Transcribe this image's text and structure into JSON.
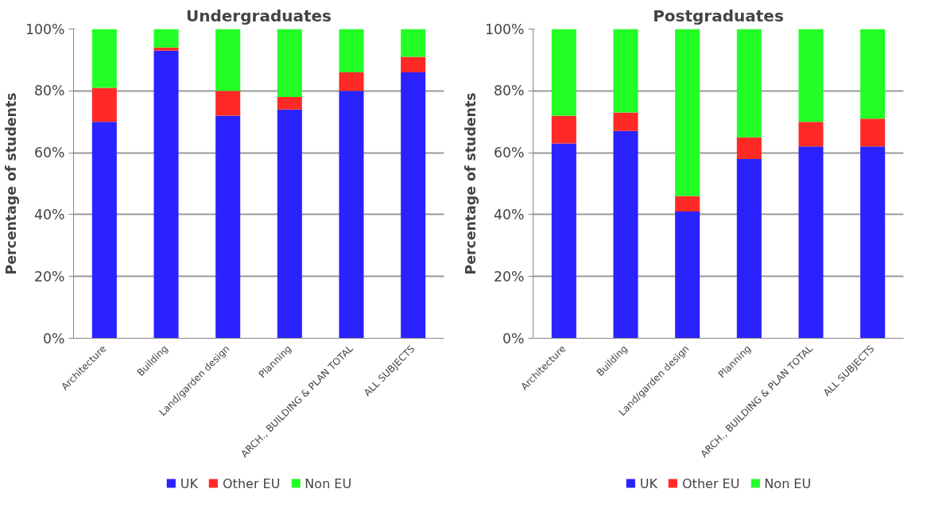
{
  "chart_data": [
    {
      "type": "bar",
      "title": "Undergraduates",
      "ylabel": "Percentage of students",
      "stacked": true,
      "categories": [
        "Architecture",
        "Building",
        "Land/garden design",
        "Planning",
        "ARCH., BUILDING & PLAN TOTAL",
        "ALL SUBJECTS"
      ],
      "series": [
        {
          "name": "UK",
          "color": "#2a22ff",
          "values": [
            70,
            93,
            72,
            74,
            80,
            86
          ]
        },
        {
          "name": "Other EU",
          "color": "#ff2a26",
          "values": [
            11,
            1,
            8,
            4,
            6,
            5
          ]
        },
        {
          "name": "Non EU",
          "color": "#22ff26",
          "values": [
            19,
            6,
            20,
            22,
            14,
            9
          ]
        }
      ],
      "ylim": [
        0,
        100
      ],
      "yticks": [
        {
          "value": 0,
          "label": "0%"
        },
        {
          "value": 20,
          "label": "20%"
        },
        {
          "value": 40,
          "label": "40%"
        },
        {
          "value": 60,
          "label": "60%"
        },
        {
          "value": 80,
          "label": "80%"
        },
        {
          "value": 100,
          "label": "100%"
        }
      ],
      "grid": "y",
      "legend": "bottom"
    },
    {
      "type": "bar",
      "title": "Postgraduates",
      "ylabel": "Percentage of students",
      "stacked": true,
      "categories": [
        "Architecture",
        "Building",
        "Land/garden design",
        "Planning",
        "ARCH., BUILDING & PLAN TOTAL",
        "ALL SUBJECTS"
      ],
      "series": [
        {
          "name": "UK",
          "color": "#2a22ff",
          "values": [
            63,
            67,
            41,
            58,
            62,
            62
          ]
        },
        {
          "name": "Other EU",
          "color": "#ff2a26",
          "values": [
            9,
            6,
            5,
            7,
            8,
            9
          ]
        },
        {
          "name": "Non EU",
          "color": "#22ff26",
          "values": [
            28,
            27,
            54,
            35,
            30,
            29
          ]
        }
      ],
      "ylim": [
        0,
        100
      ],
      "yticks": [
        {
          "value": 0,
          "label": "0%"
        },
        {
          "value": 20,
          "label": "20%"
        },
        {
          "value": 40,
          "label": "40%"
        },
        {
          "value": 60,
          "label": "60%"
        },
        {
          "value": 80,
          "label": "80%"
        },
        {
          "value": 100,
          "label": "100%"
        }
      ],
      "grid": "y",
      "legend": "bottom"
    }
  ]
}
